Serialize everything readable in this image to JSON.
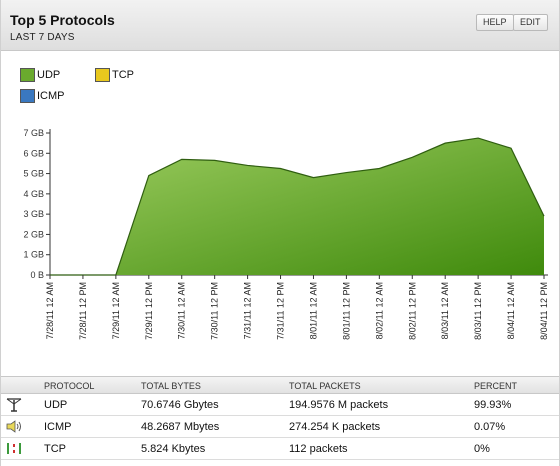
{
  "header": {
    "title": "Top 5 Protocols",
    "subtitle": "LAST 7 DAYS",
    "help_label": "HELP",
    "edit_label": "EDIT"
  },
  "legend": [
    {
      "name": "UDP",
      "color": "#6aaa2e"
    },
    {
      "name": "TCP",
      "color": "#e8c81e"
    },
    {
      "name": "ICMP",
      "color": "#3a78c0"
    }
  ],
  "chart_data": {
    "type": "area",
    "series": [
      {
        "name": "UDP",
        "color": "#6aaa2e",
        "values": [
          0,
          0,
          0,
          4.9,
          5.7,
          5.65,
          5.4,
          5.25,
          4.8,
          5.05,
          5.25,
          5.8,
          6.5,
          6.75,
          6.25,
          2.9
        ]
      }
    ],
    "x": [
      "7/28/11 12 AM",
      "7/28/11 12 PM",
      "7/29/11 12 AM",
      "7/29/11 12 PM",
      "7/30/11 12 AM",
      "7/30/11 12 PM",
      "7/31/11 12 AM",
      "7/31/11 12 PM",
      "8/01/11 12 AM",
      "8/01/11 12 PM",
      "8/02/11 12 AM",
      "8/02/11 12 PM",
      "8/03/11 12 AM",
      "8/03/11 12 PM",
      "8/04/11 12 AM",
      "8/04/11 12 PM"
    ],
    "y_ticks": [
      "0 B",
      "1 GB",
      "2 GB",
      "3 GB",
      "4 GB",
      "5 GB",
      "6 GB",
      "7 GB"
    ],
    "ylim": [
      0,
      7
    ],
    "grid": false,
    "legend_placement": "top-left"
  },
  "table": {
    "headers": [
      "PROTOCOL",
      "TOTAL BYTES",
      "TOTAL PACKETS",
      "PERCENT"
    ],
    "rows": [
      {
        "icon": "antenna-icon",
        "protocol": "UDP",
        "bytes": "70.6746 Gbytes",
        "packets": "194.9576 M packets",
        "percent": "99.93%"
      },
      {
        "icon": "speaker-icon",
        "protocol": "ICMP",
        "bytes": "48.2687 Mbytes",
        "packets": "274.254 K packets",
        "percent": "0.07%"
      },
      {
        "icon": "link-icon",
        "protocol": "TCP",
        "bytes": "5.824 Kbytes",
        "packets": "112 packets",
        "percent": "0%"
      }
    ]
  }
}
